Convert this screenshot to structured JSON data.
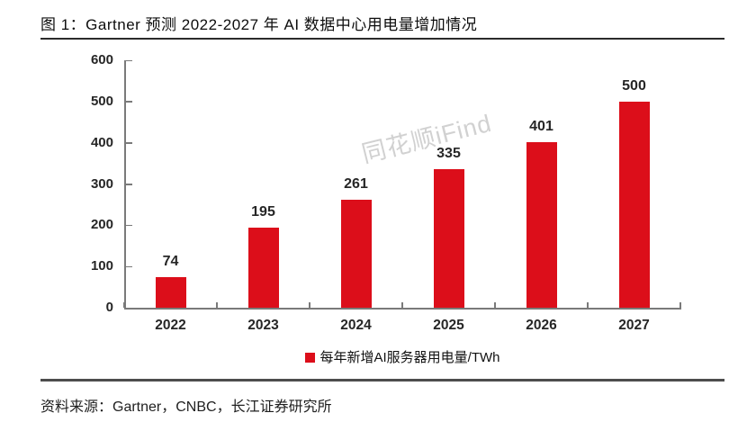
{
  "figure": {
    "title": "图 1：Gartner 预测 2022-2027 年 AI 数据中心用电量增加情况",
    "source": "资料来源：Gartner，CNBC，长江证券研究所",
    "watermark": "同花顺iFind"
  },
  "chart_data": {
    "type": "bar",
    "title": "Gartner 预测 2022-2027 年 AI 数据中心用电量增加情况",
    "categories": [
      "2022",
      "2023",
      "2024",
      "2025",
      "2026",
      "2027"
    ],
    "values": [
      74,
      195,
      261,
      335,
      401,
      500
    ],
    "series_name": "每年新增AI服务器用电量/TWh",
    "xlabel": "",
    "ylabel": "",
    "ylim": [
      0,
      600
    ],
    "yticks": [
      0,
      100,
      200,
      300,
      400,
      500,
      600
    ],
    "grid": false,
    "legend_position": "bottom",
    "data_labels": true,
    "bar_color": "#dc0e1a",
    "axis_color": "#7a7a7a",
    "label_color": "#262626",
    "watermark_color": "#c6c6c6"
  }
}
